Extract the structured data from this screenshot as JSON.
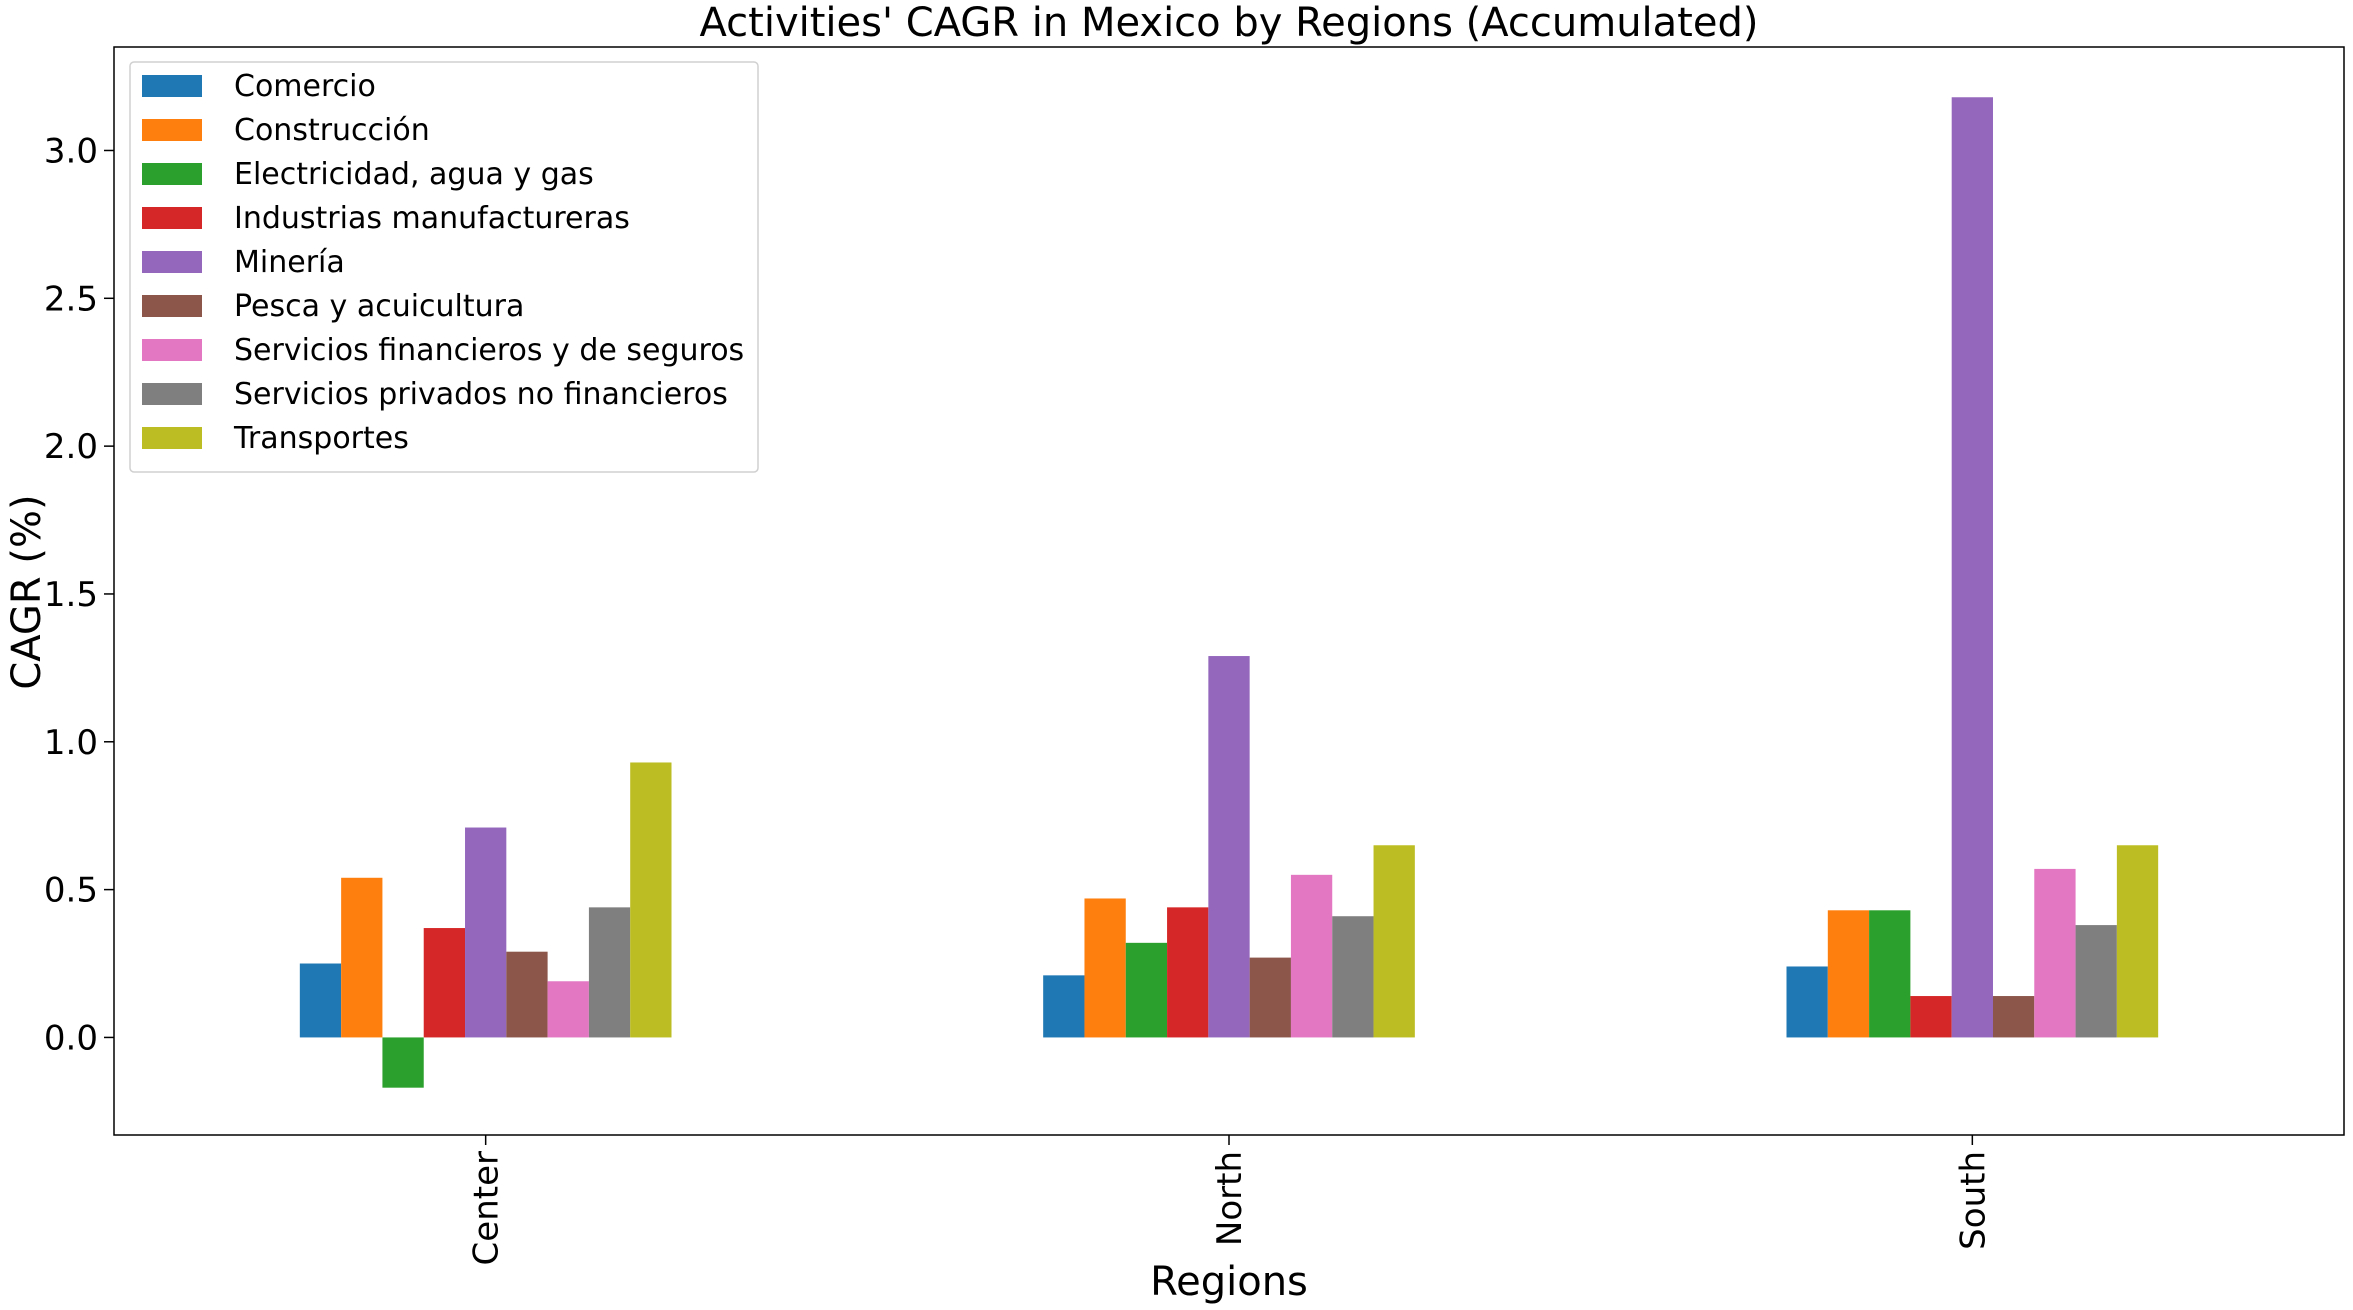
{
  "chart_data": {
    "type": "bar",
    "title": "Activities' CAGR in Mexico by Regions (Accumulated)",
    "xlabel": "Regions",
    "ylabel": "CAGR (%)",
    "categories": [
      "Center",
      "North",
      "South"
    ],
    "ylim": [
      -0.33,
      3.35
    ],
    "yticks": [
      "0.0",
      "0.5",
      "1.0",
      "1.5",
      "2.0",
      "2.5",
      "3.0"
    ],
    "legend_position": "top-left",
    "grid": false,
    "series": [
      {
        "name": "Comercio",
        "color": "#1f77b4",
        "values": [
          0.25,
          0.21,
          0.24
        ]
      },
      {
        "name": "Construcción",
        "color": "#ff7f0e",
        "values": [
          0.54,
          0.47,
          0.43
        ]
      },
      {
        "name": "Electricidad, agua y gas",
        "color": "#2ca02c",
        "values": [
          -0.17,
          0.32,
          0.43
        ]
      },
      {
        "name": "Industrias manufactureras",
        "color": "#d62728",
        "values": [
          0.37,
          0.44,
          0.14
        ]
      },
      {
        "name": "Minería",
        "color": "#9467bd",
        "values": [
          0.71,
          1.29,
          3.18
        ]
      },
      {
        "name": "Pesca y acuicultura",
        "color": "#8c564b",
        "values": [
          0.29,
          0.27,
          0.14
        ]
      },
      {
        "name": "Servicios financieros y de seguros",
        "color": "#e377c2",
        "values": [
          0.19,
          0.55,
          0.57
        ]
      },
      {
        "name": "Servicios privados no financieros",
        "color": "#7f7f7f",
        "values": [
          0.44,
          0.41,
          0.38
        ]
      },
      {
        "name": "Transportes",
        "color": "#bcbd22",
        "values": [
          0.93,
          0.65,
          0.65
        ]
      }
    ]
  }
}
